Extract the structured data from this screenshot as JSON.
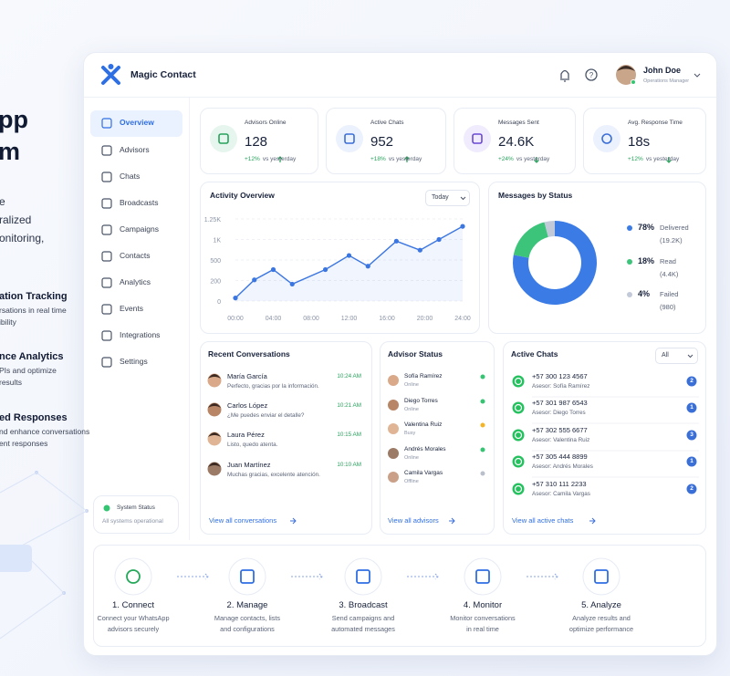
{
  "hero": {
    "title_lines": [
      "pp",
      "m"
    ],
    "text_lines": [
      "e",
      "ralized",
      "onitoring,"
    ],
    "features": [
      {
        "title": "ation Tracking",
        "lines": [
          "rsations in real time",
          "ibility"
        ]
      },
      {
        "title": "nce Analytics",
        "lines": [
          "PIs and optimize",
          "results"
        ]
      },
      {
        "title": "ed Responses",
        "lines": [
          "nd enhance conversations",
          "ent responses"
        ]
      }
    ]
  },
  "app": {
    "brand": "Magic Contact",
    "user": {
      "name": "John Doe",
      "role": "Operations Manager"
    }
  },
  "nav": [
    "Overview",
    "Advisors",
    "Chats",
    "Broadcasts",
    "Campaigns",
    "Contacts",
    "Analytics",
    "Events",
    "Integrations",
    "Settings"
  ],
  "system_status": {
    "title": "System Status",
    "text": "All systems operational"
  },
  "stats": [
    {
      "label": "Advisors Online",
      "value": 128,
      "change": "+12%",
      "note": "vs yesterday"
    },
    {
      "label": "Active Chats",
      "value": 952,
      "change": "+18%",
      "note": "vs yesterday"
    },
    {
      "label": "Messages Sent",
      "value": "24.6K",
      "change": "+24%",
      "note": "vs yesterday"
    },
    {
      "label": "Avg. Response Time",
      "value": "18s",
      "change": "+12%",
      "note": "vs yesterday"
    }
  ],
  "activity": {
    "type": "line",
    "title": "Activity Overview",
    "filter": "Today",
    "color": "#3b76e1",
    "x": [
      0,
      2,
      4,
      6,
      9.5,
      12,
      14,
      17,
      19.5,
      21.5,
      24
    ],
    "values": [
      30,
      210,
      360,
      165,
      360,
      610,
      410,
      960,
      740,
      1000,
      1160
    ],
    "xlim": [
      0,
      24
    ],
    "ylim": [
      0,
      1250
    ],
    "xticks": [
      {
        "value": 0,
        "label": "00:00"
      },
      {
        "value": 4,
        "label": "04:00"
      },
      {
        "value": 8,
        "label": "08:00"
      },
      {
        "value": 12,
        "label": "12:00"
      },
      {
        "value": 16,
        "label": "16:00"
      },
      {
        "value": 20,
        "label": "20:00"
      },
      {
        "value": 24,
        "label": "24:00"
      }
    ],
    "yticks": [
      0,
      200,
      500,
      {
        "value": 1000,
        "label": "1K"
      },
      {
        "value": 1250,
        "label": "1.25K"
      }
    ],
    "grid": true
  },
  "messages_by_status": {
    "type": "donut",
    "title": "Messages by Status",
    "categories": [
      "Delivered",
      "Read",
      "Failed"
    ],
    "values": [
      78,
      18,
      4
    ],
    "value_labels": [
      "78%",
      "18%",
      "4%"
    ],
    "counts": [
      "(19.2K)",
      "(4.4K)",
      "(980)"
    ],
    "colors": [
      "#3b7be6",
      "#3cc47a",
      "#c2cad9"
    ]
  },
  "conversations": {
    "title": "Recent Conversations",
    "link": "View all conversations",
    "items": [
      {
        "name": "María García",
        "message": "Perfecto, gracias por la información.",
        "time": "10:24 AM"
      },
      {
        "name": "Carlos López",
        "message": "¿Me puedes enviar el detalle?",
        "time": "10:21 AM"
      },
      {
        "name": "Laura Pérez",
        "message": "Listo, quedo atenta.",
        "time": "10:15 AM"
      },
      {
        "name": "Juan Martínez",
        "message": "Muchas gracias, excelente atención.",
        "time": "10:10 AM"
      }
    ]
  },
  "advisors": {
    "title": "Advisor Status",
    "link": "View all advisors",
    "items": [
      {
        "name": "Sofía Ramírez",
        "status": "Online",
        "color": "#34c472"
      },
      {
        "name": "Diego Torres",
        "status": "Online",
        "color": "#34c472"
      },
      {
        "name": "Valentina Ruiz",
        "status": "Busy",
        "color": "#f5b423"
      },
      {
        "name": "Andrés Morales",
        "status": "Online",
        "color": "#34c472"
      },
      {
        "name": "Camila Vargas",
        "status": "Offline",
        "color": "#b8c0cc"
      }
    ]
  },
  "active_chats": {
    "title": "Active Chats",
    "filter": "All",
    "link": "View all active chats",
    "items": [
      {
        "phone": "+57 300 123 4567",
        "advisor": "Asesor: Sofía Ramírez",
        "count": 2
      },
      {
        "phone": "+57 301 987 6543",
        "advisor": "Asesor: Diego Torres",
        "count": 1
      },
      {
        "phone": "+57 302 555 6677",
        "advisor": "Asesor: Valentina Ruiz",
        "count": 3
      },
      {
        "phone": "+57 305 444 8899",
        "advisor": "Asesor: Andrés Morales",
        "count": 1
      },
      {
        "phone": "+57 310 111 2233",
        "advisor": "Asesor: Camila Vargas",
        "count": 2
      }
    ]
  },
  "steps": [
    {
      "title": "1. Connect",
      "lines": [
        "Connect your WhatsApp",
        "advisors securely"
      ]
    },
    {
      "title": "2. Manage",
      "lines": [
        "Manage contacts, lists",
        "and configurations"
      ]
    },
    {
      "title": "3. Broadcast",
      "lines": [
        "Send campaigns and",
        "automated messages"
      ]
    },
    {
      "title": "4. Monitor",
      "lines": [
        "Monitor conversations",
        "in real time"
      ]
    },
    {
      "title": "5. Analyze",
      "lines": [
        "Analyze results and",
        "optimize performance"
      ]
    }
  ]
}
